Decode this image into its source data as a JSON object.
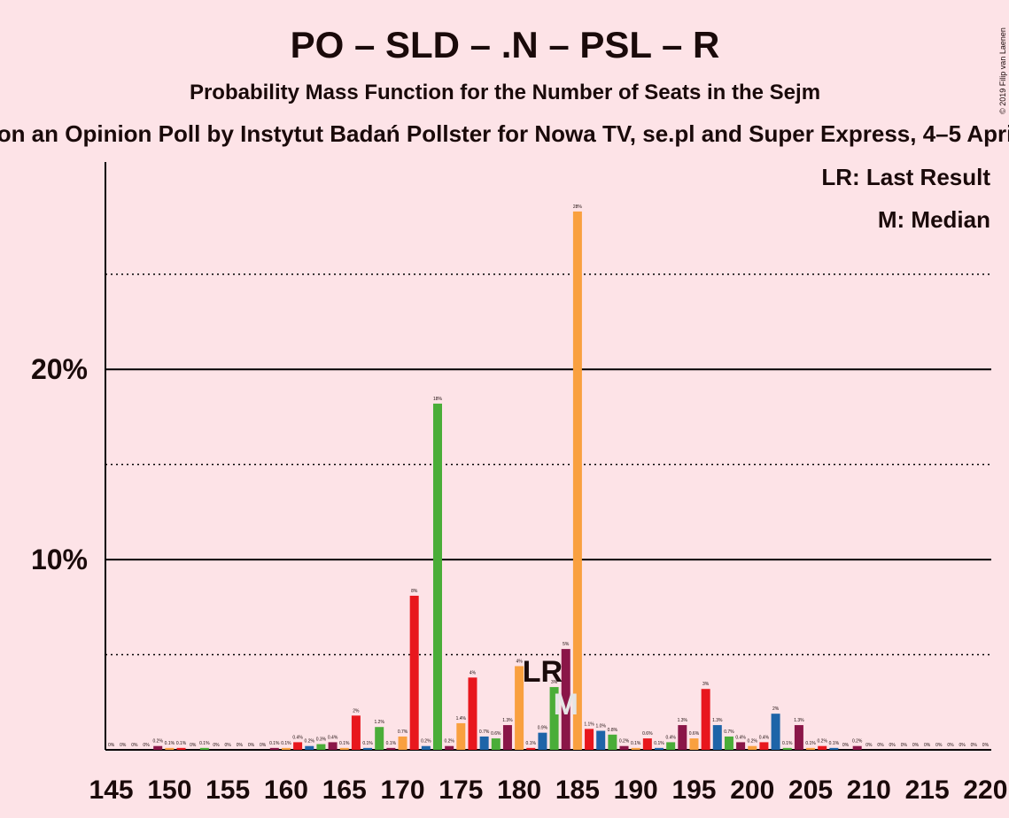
{
  "chart_data": {
    "type": "bar",
    "title": "PO – SLD – .N – PSL – R",
    "subtitle": "Probability Mass Function for the Number of Seats in the Sejm",
    "source": "on an Opinion Poll by Instytut Badań Pollster for Nowa TV, se.pl and Super Express, 4–5 Apri",
    "copyright": "© 2019 Filip van Laenen",
    "legend_notes": [
      "LR: Last Result",
      "M: Median"
    ],
    "x": [
      145,
      146,
      147,
      148,
      149,
      150,
      151,
      152,
      153,
      154,
      155,
      156,
      157,
      158,
      159,
      160,
      161,
      162,
      163,
      164,
      165,
      166,
      167,
      168,
      169,
      170,
      171,
      172,
      173,
      174,
      175,
      176,
      177,
      178,
      179,
      180,
      181,
      182,
      183,
      184,
      185,
      186,
      187,
      188,
      189,
      190,
      191,
      192,
      193,
      194,
      195,
      196,
      197,
      198,
      199,
      200,
      201,
      202,
      203,
      204,
      205,
      206,
      207,
      208,
      209,
      210,
      211,
      212,
      213,
      214,
      215,
      216,
      217,
      218,
      219,
      220
    ],
    "values": [
      0,
      0,
      0,
      0,
      0.2,
      0.1,
      0.1,
      0,
      0.1,
      0,
      0,
      0,
      0,
      0,
      0.1,
      0.1,
      0.4,
      0.2,
      0.3,
      0.4,
      0.1,
      1.8,
      0.1,
      1.2,
      0.1,
      0.7,
      8.1,
      0.2,
      18.2,
      0.2,
      1.4,
      3.8,
      0.7,
      0.6,
      1.3,
      4.4,
      0.1,
      0.9,
      3.3,
      5.3,
      28.3,
      1.1,
      1.0,
      0.8,
      0.2,
      0.1,
      0.6,
      0.1,
      0.4,
      1.3,
      0.6,
      3.2,
      1.3,
      0.7,
      0.4,
      0.2,
      0.4,
      1.9,
      0.1,
      1.3,
      0.1,
      0.2,
      0.1,
      0,
      0.2,
      0,
      0,
      0,
      0,
      0,
      0,
      0,
      0,
      0,
      0,
      0
    ],
    "value_labels": [
      "0%",
      "0%",
      "0%",
      "0%",
      "0.2%",
      "0.1%",
      "0.1%",
      "0%",
      "0.1%",
      "0%",
      "0%",
      "0%",
      "0%",
      "0%",
      "0.1%",
      "0.1%",
      "0.4%",
      "0.2%",
      "0.3%",
      "0.4%",
      "0.1%",
      "2%",
      "0.1%",
      "1.2%",
      "0.1%",
      "0.7%",
      "8%",
      "0.2%",
      "18%",
      "0.2%",
      "1.4%",
      "4%",
      "0.7%",
      "0.6%",
      "1.3%",
      "4%",
      "0.1%",
      "0.9%",
      "3%",
      "5%",
      "28%",
      "1.1%",
      "1.0%",
      "0.8%",
      "0.2%",
      "0.1%",
      "0.6%",
      "0.1%",
      "0.4%",
      "1.3%",
      "0.6%",
      "3%",
      "1.3%",
      "0.7%",
      "0.4%",
      "0.2%",
      "0.4%",
      "2%",
      "0.1%",
      "1.3%",
      "0.1%",
      "0.2%",
      "0.1%",
      "0%",
      "0.2%",
      "0%",
      "0%",
      "0%",
      "0%",
      "0%",
      "0%",
      "0%",
      "0%",
      "0%",
      "0%",
      "0%"
    ],
    "palette": [
      "#f9a03f",
      "#e8171d",
      "#1e64a8",
      "#4aad38",
      "#8a1648"
    ],
    "xlim": [
      144.5,
      220.5
    ],
    "xticks": [
      145,
      150,
      155,
      160,
      165,
      170,
      175,
      180,
      185,
      190,
      195,
      200,
      205,
      210,
      215,
      220
    ],
    "ylim": [
      0,
      30.9
    ],
    "yticks": [
      {
        "value": 10,
        "label": "10%"
      },
      {
        "value": 20,
        "label": "20%"
      }
    ],
    "minor_yticks": [
      5,
      15,
      25
    ],
    "last_result": {
      "x": 182,
      "label": "LR"
    },
    "median": {
      "x": 184,
      "label": "M"
    }
  }
}
